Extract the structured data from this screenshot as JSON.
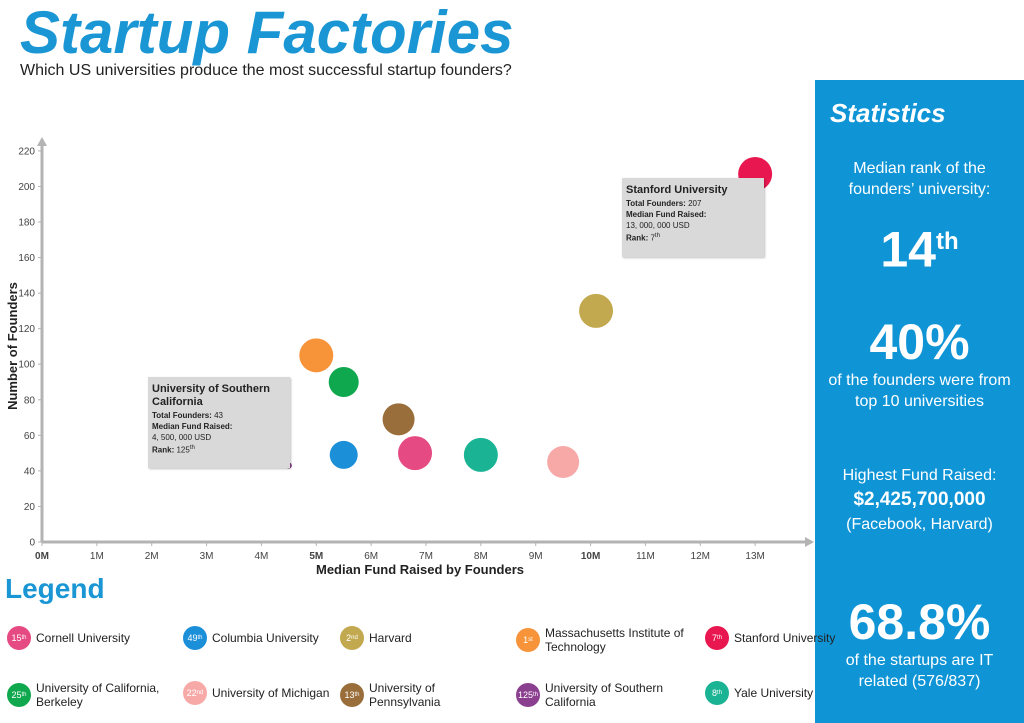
{
  "header": {
    "title": "Startup Factories",
    "subtitle": "Which US universities produce the most successful startup founders?"
  },
  "chart_data": {
    "type": "scatter",
    "xlabel": "Median Fund Raised by Founders",
    "ylabel": "Number of Founders",
    "xlim": [
      0,
      14
    ],
    "ylim": [
      0,
      225
    ],
    "x_ticks": [
      0,
      1,
      2,
      3,
      4,
      5,
      6,
      7,
      8,
      9,
      10,
      11,
      12,
      13
    ],
    "x_tick_labels": [
      "0M",
      "1M",
      "2M",
      "3M",
      "4M",
      "5M",
      "6M",
      "7M",
      "8M",
      "9M",
      "10M",
      "11M",
      "12M",
      "13M"
    ],
    "y_ticks": [
      0,
      20,
      40,
      60,
      80,
      100,
      120,
      140,
      160,
      180,
      200,
      220
    ],
    "y_tick_labels": [
      "0",
      "20",
      "40",
      "60",
      "80",
      "100",
      "120",
      "140",
      "160",
      "180",
      "200",
      "220"
    ],
    "points": [
      {
        "name": "Stanford University",
        "rank": "7",
        "x": 13.0,
        "y": 207,
        "color": "#e8174f",
        "r": 17
      },
      {
        "name": "Harvard",
        "rank": "2",
        "x": 10.1,
        "y": 130,
        "color": "#c2a94f",
        "r": 17
      },
      {
        "name": "Massachusetts Institute of Technology",
        "rank": "1",
        "x": 5.0,
        "y": 105,
        "color": "#f7943a",
        "r": 17
      },
      {
        "name": "University of California, Berkeley",
        "rank": "25",
        "x": 5.5,
        "y": 90,
        "color": "#10a84e",
        "r": 15
      },
      {
        "name": "University of Pennsylvania",
        "rank": "13",
        "x": 6.5,
        "y": 69,
        "color": "#9a6e3a",
        "r": 16
      },
      {
        "name": "Columbia University",
        "rank": "49",
        "x": 5.5,
        "y": 49,
        "color": "#1c8fd9",
        "r": 14
      },
      {
        "name": "Cornell University",
        "rank": "15",
        "x": 6.8,
        "y": 50,
        "color": "#e64a82",
        "r": 17
      },
      {
        "name": "Yale University",
        "rank": "8",
        "x": 8.0,
        "y": 49,
        "color": "#1ab394",
        "r": 17
      },
      {
        "name": "University of Michigan",
        "rank": "22",
        "x": 9.5,
        "y": 45,
        "color": "#f7a9a7",
        "r": 16
      },
      {
        "name": "University of Southern California",
        "rank": "125",
        "x": 4.5,
        "y": 43,
        "color": "#8a3f8f",
        "r": 3
      }
    ],
    "annotations": [
      {
        "university": "Stanford University",
        "total_founders_label": "Total Founders:",
        "total_founders": "207",
        "median_fund_label": "Median Fund Raised:",
        "median_fund": "13, 000, 000 USD",
        "rank_label": "Rank:",
        "rank": "7",
        "rank_suffix": "th"
      },
      {
        "university": "University of Southern California",
        "total_founders_label": "Total Founders:",
        "total_founders": "43",
        "median_fund_label": "Median Fund Raised:",
        "median_fund": "4, 500, 000 USD",
        "rank_label": "Rank:",
        "rank": "125",
        "rank_suffix": "th"
      }
    ]
  },
  "stats": {
    "title": "Statistics",
    "median_rank_text": "Median rank of the founders’ university:",
    "median_rank": "14",
    "median_rank_suffix": "th",
    "top10_pct": "40%",
    "top10_text": "of the founders were from top 10 universities",
    "highest_fund_label": "Highest Fund Raised:",
    "highest_fund": "$2,425,700,000",
    "highest_fund_note": "(Facebook, Harvard)",
    "it_pct": "68.8%",
    "it_text": "of the startups are IT related (576/837)"
  },
  "legend": {
    "title": "Legend",
    "items": [
      {
        "rank": "15",
        "suffix": "th",
        "name": "Cornell University",
        "color": "#e64a82"
      },
      {
        "rank": "49",
        "suffix": "th",
        "name": "Columbia University",
        "color": "#1c8fd9"
      },
      {
        "rank": "2",
        "suffix": "nd",
        "name": "Harvard",
        "color": "#c2a94f"
      },
      {
        "rank": "1",
        "suffix": "st",
        "name": "Massachusetts Institute of Technology",
        "color": "#f7943a"
      },
      {
        "rank": "7",
        "suffix": "th",
        "name": "Stanford University",
        "color": "#e8174f"
      },
      {
        "rank": "25",
        "suffix": "th",
        "name": "University of California, Berkeley",
        "color": "#10a84e"
      },
      {
        "rank": "22",
        "suffix": "nd",
        "name": "University of Michigan",
        "color": "#f7a9a7"
      },
      {
        "rank": "13",
        "suffix": "th",
        "name": "University of Pennsylvania",
        "color": "#9a6e3a"
      },
      {
        "rank": "125",
        "suffix": "th",
        "name": "University of Southern California",
        "color": "#8a3f8f"
      },
      {
        "rank": "8",
        "suffix": "th",
        "name": "Yale University",
        "color": "#1ab394"
      }
    ]
  }
}
